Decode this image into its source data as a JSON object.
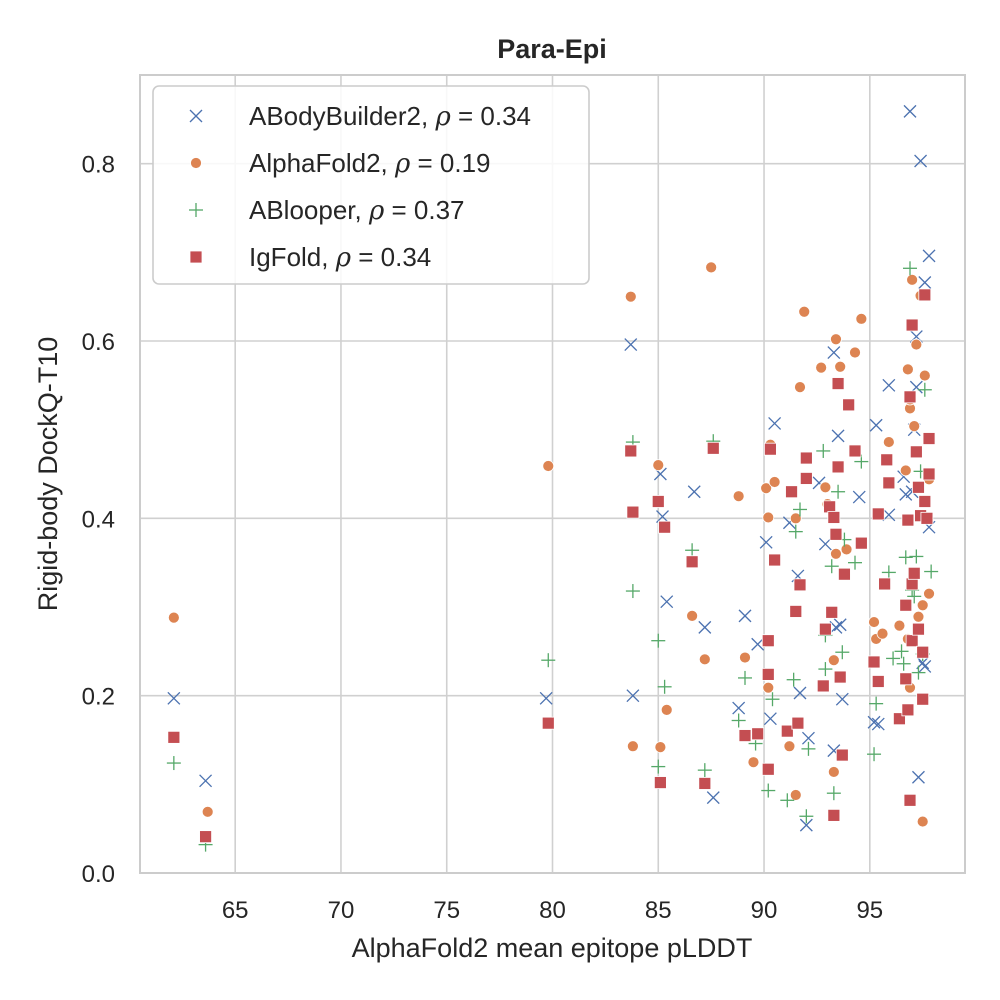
{
  "chart_data": {
    "type": "scatter",
    "title": "Para-Epi",
    "xlabel": "AlphaFold2 mean epitope pLDDT",
    "ylabel": "Rigid-body DockQ-T10",
    "xlim": [
      60.5,
      99.5
    ],
    "ylim": [
      0.0,
      0.9
    ],
    "xticks": [
      65,
      70,
      75,
      80,
      85,
      90,
      95
    ],
    "yticks": [
      0.0,
      0.2,
      0.4,
      0.6,
      0.8
    ],
    "xtick_labels": [
      "65",
      "70",
      "75",
      "80",
      "85",
      "90",
      "95"
    ],
    "ytick_labels": [
      "0.0",
      "0.2",
      "0.4",
      "0.6",
      "0.8"
    ],
    "grid": true,
    "legend_position": "upper-left",
    "series": [
      {
        "name": "ABodyBuilder2",
        "label_prefix": "ABodyBuilder2, ",
        "rho": "0.34",
        "color": "#4c72b0",
        "marker": "x",
        "points": [
          [
            62.1,
            0.197
          ],
          [
            63.6,
            0.104
          ],
          [
            79.7,
            0.197
          ],
          [
            83.7,
            0.596
          ],
          [
            83.8,
            0.2
          ],
          [
            85.1,
            0.45
          ],
          [
            85.2,
            0.402
          ],
          [
            85.4,
            0.306
          ],
          [
            86.7,
            0.43
          ],
          [
            87.2,
            0.277
          ],
          [
            87.6,
            0.085
          ],
          [
            88.8,
            0.186
          ],
          [
            89.1,
            0.29
          ],
          [
            89.7,
            0.258
          ],
          [
            90.1,
            0.373
          ],
          [
            90.3,
            0.174
          ],
          [
            90.5,
            0.507
          ],
          [
            91.2,
            0.395
          ],
          [
            91.6,
            0.335
          ],
          [
            91.7,
            0.203
          ],
          [
            92.0,
            0.054
          ],
          [
            92.1,
            0.152
          ],
          [
            92.6,
            0.44
          ],
          [
            92.9,
            0.371
          ],
          [
            93.3,
            0.587
          ],
          [
            93.4,
            0.277
          ],
          [
            93.5,
            0.493
          ],
          [
            93.7,
            0.196
          ],
          [
            93.6,
            0.28
          ],
          [
            94.5,
            0.424
          ],
          [
            95.2,
            0.17
          ],
          [
            95.3,
            0.505
          ],
          [
            95.4,
            0.168
          ],
          [
            95.9,
            0.55
          ],
          [
            95.9,
            0.404
          ],
          [
            96.6,
            0.447
          ],
          [
            96.7,
            0.427
          ],
          [
            96.9,
            0.859
          ],
          [
            97.1,
            0.5
          ],
          [
            97.2,
            0.605
          ],
          [
            97.2,
            0.548
          ],
          [
            97.3,
            0.108
          ],
          [
            97.4,
            0.803
          ],
          [
            97.5,
            0.237
          ],
          [
            97.6,
            0.233
          ],
          [
            97.6,
            0.666
          ],
          [
            97.8,
            0.39
          ],
          [
            97.8,
            0.696
          ],
          [
            93.3,
            0.138
          ],
          [
            97.0,
            0.43
          ]
        ]
      },
      {
        "name": "AlphaFold2",
        "label_prefix": "AlphaFold2, ",
        "rho": "0.19",
        "color": "#dd8452",
        "marker": "o",
        "points": [
          [
            62.1,
            0.288
          ],
          [
            63.7,
            0.069
          ],
          [
            79.8,
            0.459
          ],
          [
            83.7,
            0.65
          ],
          [
            83.8,
            0.143
          ],
          [
            85.0,
            0.46
          ],
          [
            85.1,
            0.142
          ],
          [
            85.4,
            0.184
          ],
          [
            86.6,
            0.29
          ],
          [
            87.2,
            0.241
          ],
          [
            87.5,
            0.683
          ],
          [
            88.8,
            0.425
          ],
          [
            89.1,
            0.243
          ],
          [
            89.5,
            0.125
          ],
          [
            90.1,
            0.434
          ],
          [
            90.2,
            0.401
          ],
          [
            90.2,
            0.209
          ],
          [
            90.3,
            0.483
          ],
          [
            90.5,
            0.441
          ],
          [
            91.2,
            0.143
          ],
          [
            91.5,
            0.088
          ],
          [
            91.5,
            0.4
          ],
          [
            91.7,
            0.548
          ],
          [
            91.9,
            0.633
          ],
          [
            92.7,
            0.57
          ],
          [
            93.0,
            0.416
          ],
          [
            93.3,
            0.114
          ],
          [
            93.3,
            0.24
          ],
          [
            93.4,
            0.36
          ],
          [
            93.4,
            0.602
          ],
          [
            93.6,
            0.571
          ],
          [
            93.9,
            0.365
          ],
          [
            94.3,
            0.587
          ],
          [
            94.6,
            0.625
          ],
          [
            95.2,
            0.283
          ],
          [
            95.3,
            0.264
          ],
          [
            95.6,
            0.27
          ],
          [
            95.9,
            0.486
          ],
          [
            96.4,
            0.279
          ],
          [
            96.7,
            0.454
          ],
          [
            96.8,
            0.568
          ],
          [
            96.9,
            0.524
          ],
          [
            96.9,
            0.209
          ],
          [
            97.0,
            0.669
          ],
          [
            97.1,
            0.504
          ],
          [
            97.2,
            0.596
          ],
          [
            97.3,
            0.289
          ],
          [
            97.4,
            0.651
          ],
          [
            97.5,
            0.058
          ],
          [
            97.6,
            0.561
          ],
          [
            97.8,
            0.315
          ],
          [
            96.8,
            0.264
          ],
          [
            97.5,
            0.302
          ],
          [
            96.9,
            0.534
          ],
          [
            92.9,
            0.435
          ],
          [
            97.8,
            0.444
          ]
        ]
      },
      {
        "name": "ABlooper",
        "label_prefix": "ABlooper, ",
        "rho": "0.37",
        "color": "#55a868",
        "marker": "+",
        "points": [
          [
            62.1,
            0.124
          ],
          [
            63.6,
            0.032
          ],
          [
            79.8,
            0.24
          ],
          [
            83.8,
            0.318
          ],
          [
            83.8,
            0.486
          ],
          [
            85.0,
            0.262
          ],
          [
            85.0,
            0.12
          ],
          [
            85.3,
            0.21
          ],
          [
            86.6,
            0.364
          ],
          [
            87.2,
            0.116
          ],
          [
            87.6,
            0.487
          ],
          [
            88.8,
            0.172
          ],
          [
            89.1,
            0.22
          ],
          [
            89.6,
            0.146
          ],
          [
            90.2,
            0.093
          ],
          [
            90.4,
            0.196
          ],
          [
            91.1,
            0.082
          ],
          [
            91.4,
            0.218
          ],
          [
            91.5,
            0.385
          ],
          [
            91.7,
            0.41
          ],
          [
            92.0,
            0.064
          ],
          [
            92.1,
            0.14
          ],
          [
            92.8,
            0.476
          ],
          [
            92.9,
            0.268
          ],
          [
            93.2,
            0.346
          ],
          [
            93.3,
            0.09
          ],
          [
            93.5,
            0.43
          ],
          [
            93.7,
            0.249
          ],
          [
            93.8,
            0.376
          ],
          [
            94.3,
            0.35
          ],
          [
            94.6,
            0.464
          ],
          [
            95.2,
            0.134
          ],
          [
            95.3,
            0.191
          ],
          [
            95.9,
            0.339
          ],
          [
            96.1,
            0.242
          ],
          [
            96.5,
            0.25
          ],
          [
            96.7,
            0.356
          ],
          [
            96.9,
            0.682
          ],
          [
            97.1,
            0.312
          ],
          [
            97.2,
            0.357
          ],
          [
            97.3,
            0.226
          ],
          [
            97.4,
            0.453
          ],
          [
            97.5,
            0.247
          ],
          [
            97.6,
            0.545
          ],
          [
            97.9,
            0.34
          ],
          [
            96.6,
            0.236
          ],
          [
            97.0,
            0.319
          ],
          [
            92.9,
            0.23
          ]
        ]
      },
      {
        "name": "IgFold",
        "label_prefix": "IgFold, ",
        "rho": "0.34",
        "color": "#c44e52",
        "marker": "s",
        "points": [
          [
            62.1,
            0.153
          ],
          [
            63.6,
            0.041
          ],
          [
            79.8,
            0.169
          ],
          [
            83.7,
            0.476
          ],
          [
            83.8,
            0.407
          ],
          [
            85.0,
            0.419
          ],
          [
            85.1,
            0.102
          ],
          [
            85.3,
            0.39
          ],
          [
            86.6,
            0.351
          ],
          [
            87.2,
            0.101
          ],
          [
            87.6,
            0.479
          ],
          [
            89.1,
            0.155
          ],
          [
            89.7,
            0.157
          ],
          [
            90.2,
            0.117
          ],
          [
            90.2,
            0.262
          ],
          [
            90.2,
            0.224
          ],
          [
            90.3,
            0.478
          ],
          [
            90.5,
            0.353
          ],
          [
            91.1,
            0.16
          ],
          [
            91.3,
            0.43
          ],
          [
            91.5,
            0.295
          ],
          [
            91.6,
            0.169
          ],
          [
            91.7,
            0.325
          ],
          [
            92.0,
            0.468
          ],
          [
            92.0,
            0.445
          ],
          [
            92.8,
            0.211
          ],
          [
            92.9,
            0.275
          ],
          [
            93.1,
            0.413
          ],
          [
            93.2,
            0.294
          ],
          [
            93.3,
            0.401
          ],
          [
            93.3,
            0.065
          ],
          [
            93.4,
            0.382
          ],
          [
            93.5,
            0.458
          ],
          [
            93.5,
            0.552
          ],
          [
            93.6,
            0.221
          ],
          [
            93.7,
            0.133
          ],
          [
            93.8,
            0.337
          ],
          [
            94.0,
            0.528
          ],
          [
            94.3,
            0.476
          ],
          [
            94.6,
            0.372
          ],
          [
            95.2,
            0.238
          ],
          [
            95.4,
            0.216
          ],
          [
            95.4,
            0.405
          ],
          [
            95.7,
            0.326
          ],
          [
            95.8,
            0.466
          ],
          [
            95.9,
            0.44
          ],
          [
            96.4,
            0.174
          ],
          [
            96.7,
            0.302
          ],
          [
            96.7,
            0.219
          ],
          [
            96.8,
            0.398
          ],
          [
            96.8,
            0.184
          ],
          [
            96.9,
            0.082
          ],
          [
            96.9,
            0.537
          ],
          [
            97.0,
            0.618
          ],
          [
            97.0,
            0.326
          ],
          [
            97.0,
            0.262
          ],
          [
            97.1,
            0.338
          ],
          [
            97.2,
            0.475
          ],
          [
            97.3,
            0.435
          ],
          [
            97.3,
            0.275
          ],
          [
            97.4,
            0.403
          ],
          [
            97.5,
            0.249
          ],
          [
            97.5,
            0.196
          ],
          [
            97.6,
            0.652
          ],
          [
            97.6,
            0.419
          ],
          [
            97.7,
            0.4
          ],
          [
            97.8,
            0.49
          ],
          [
            97.8,
            0.45
          ]
        ]
      }
    ]
  }
}
